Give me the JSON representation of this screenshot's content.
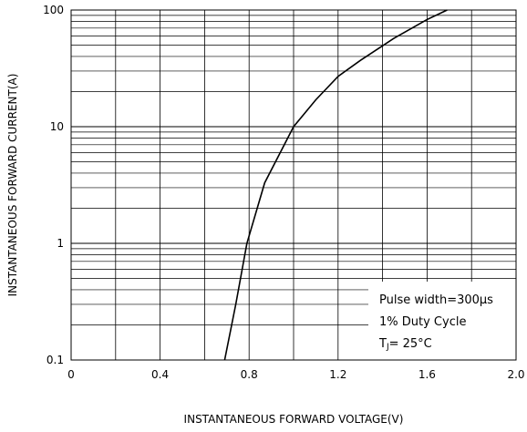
{
  "chart_data": {
    "type": "line",
    "title": "",
    "xlabel": "INSTANTANEOUS FORWARD VOLTAGE(V)",
    "ylabel": "INSTANTANEOUS FORWARD CURRENT(A)",
    "x_scale": "linear",
    "y_scale": "log",
    "xlim": [
      0,
      2.0
    ],
    "ylim": [
      0.1,
      100
    ],
    "x_ticks": [
      "0",
      "0.4",
      "0.8",
      "1.2",
      "1.6",
      "2.0"
    ],
    "y_ticks": [
      "0.1",
      "1",
      "10",
      "100"
    ],
    "grid": true,
    "legend": "none",
    "series": [
      {
        "x": [
          0.69,
          0.74,
          0.79,
          0.87,
          1.0,
          1.1,
          1.2,
          1.3,
          1.45,
          1.6,
          1.69
        ],
        "y": [
          0.1,
          0.3,
          1.0,
          3.3,
          10,
          17,
          27,
          37,
          57,
          83,
          100
        ]
      }
    ],
    "annotations": {
      "line1": "Pulse width=300μs",
      "line2": "1% Duty Cycle",
      "line3_prefix": "T",
      "line3_sub": "J",
      "line3_suffix": "= 25°C"
    },
    "colors": {
      "line": "#000000",
      "grid": "#000000"
    }
  }
}
